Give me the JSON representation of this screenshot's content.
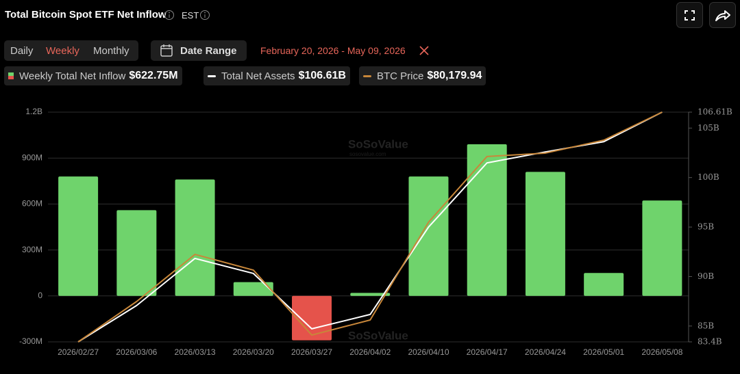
{
  "header": {
    "title": "Total Bitcoin Spot ETF Net Inflow",
    "timezone": "EST"
  },
  "controls": {
    "tabs": [
      "Daily",
      "Weekly",
      "Monthly"
    ],
    "date_range_label": "Date Range",
    "date_range": "February 20, 2026 - May 09, 2026"
  },
  "watermark": {
    "text": "SoSoValue",
    "url": "sosovalue.com"
  },
  "chart_data": {
    "type": "bar",
    "categories": [
      "2026/02/27",
      "2026/03/06",
      "2026/03/13",
      "2026/03/20",
      "2026/03/27",
      "2026/04/02",
      "2026/04/10",
      "2026/04/17",
      "2026/04/24",
      "2026/05/01",
      "2026/05/08"
    ],
    "series": [
      {
        "name": "Weekly Total Net Inflow",
        "type": "bar",
        "color": "#6fd36c",
        "negative_color": "#e5534b",
        "legend_value": "$622.75M",
        "values": [
          780000000,
          560000000,
          760000000,
          90000000,
          -290000000,
          20000000,
          780000000,
          990000000,
          810000000,
          150000000,
          622750000
        ]
      },
      {
        "name": "Total Net Assets",
        "type": "line",
        "axis": "y2",
        "color": "#ffffff",
        "legend_value": "$106.61B",
        "values": [
          83400000000,
          87070000000,
          91830000000,
          90310000000,
          84720000000,
          86170000000,
          95000000000,
          101480000000,
          102590000000,
          103620000000,
          106610000000
        ]
      },
      {
        "name": "BTC Price",
        "type": "line",
        "axis": "y3",
        "color": "#c8873a",
        "legend_value": "$80,179.94",
        "values": [
          66000,
          68490,
          71400,
          70430,
          66420,
          67350,
          73390,
          77440,
          77650,
          78450,
          80179.94
        ]
      }
    ],
    "ylim": [
      -300000000,
      1200000000
    ],
    "yticks": [
      {
        "value": -300000000,
        "label": "-300M"
      },
      {
        "value": 0,
        "label": "0"
      },
      {
        "value": 300000000,
        "label": "300M"
      },
      {
        "value": 600000000,
        "label": "600M"
      },
      {
        "value": 900000000,
        "label": "900M"
      },
      {
        "value": 1200000000,
        "label": "1.2B"
      }
    ],
    "y2lim": [
      83400000000,
      106610000000
    ],
    "y2ticks": [
      {
        "value": 83400000000,
        "label": "83.4B"
      },
      {
        "value": 85000000000,
        "label": "85B"
      },
      {
        "value": 90000000000,
        "label": "90B"
      },
      {
        "value": 95000000000,
        "label": "95B"
      },
      {
        "value": 100000000000,
        "label": "100B"
      },
      {
        "value": 105000000000,
        "label": "105B"
      },
      {
        "value": 106610000000,
        "label": "106.61B"
      }
    ],
    "y3lim": [
      66000,
      80179.94
    ],
    "grid": true
  }
}
